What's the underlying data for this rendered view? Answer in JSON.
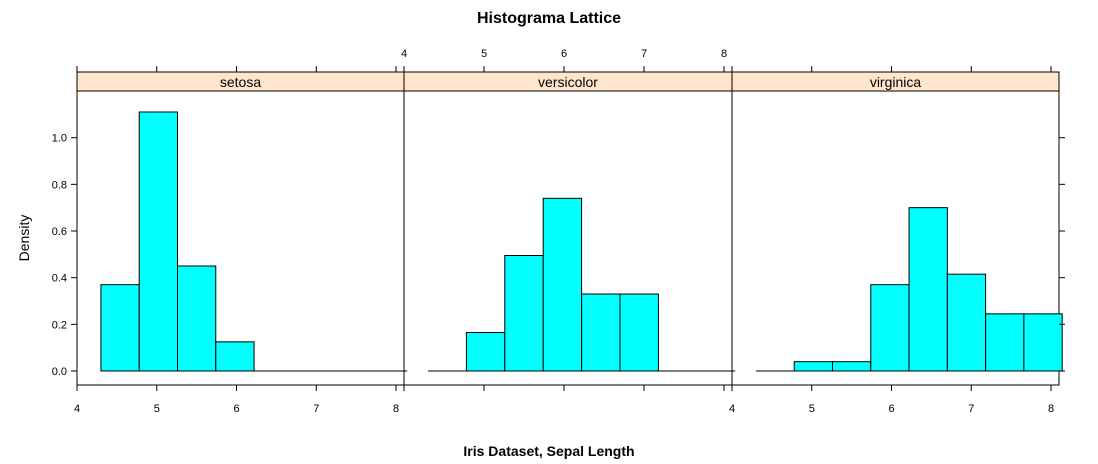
{
  "chart_data": {
    "type": "bar",
    "title": "Histograma Lattice",
    "xlabel": "Iris Dataset, Sepal Length",
    "ylabel": "Density",
    "xlim": [
      4.0,
      8.1
    ],
    "ylim": [
      -0.06,
      1.2
    ],
    "x_ticks": [
      4,
      5,
      6,
      7,
      8
    ],
    "y_ticks": [
      0.0,
      0.2,
      0.4,
      0.6,
      0.8,
      1.0
    ],
    "y_tick_labels": [
      "0.0",
      "0.2",
      "0.4",
      "0.6",
      "0.8",
      "1.0"
    ],
    "grid": false,
    "bin_edges": [
      4.3,
      4.78,
      5.26,
      5.74,
      6.22,
      6.7,
      7.18,
      7.66,
      8.14
    ],
    "panels": [
      {
        "name": "setosa",
        "values": [
          0.37,
          1.11,
          0.45,
          0.125,
          0.0,
          0.0,
          0.0,
          0.0
        ]
      },
      {
        "name": "versicolor",
        "values": [
          0.0,
          0.165,
          0.495,
          0.74,
          0.33,
          0.33,
          0.0,
          0.0
        ]
      },
      {
        "name": "virginica",
        "values": [
          0.0,
          0.04,
          0.04,
          0.37,
          0.7,
          0.415,
          0.245,
          0.245
        ]
      }
    ]
  },
  "colors": {
    "bar_fill": "#00ffff",
    "strip_fill": "#ffe5cc",
    "border": "#000000"
  }
}
